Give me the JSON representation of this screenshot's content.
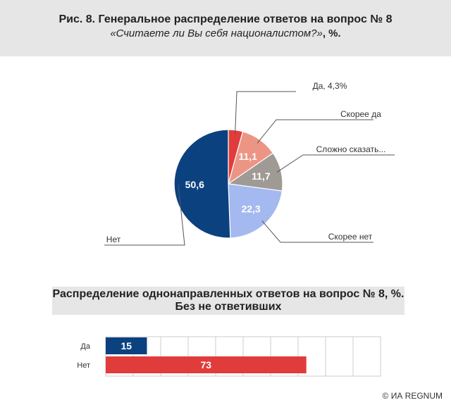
{
  "header": {
    "title": "Рис. 8. Генеральное распределение ответов на вопрос № 8",
    "subtitle_question": "«Считаете ли Вы себя националистом?»",
    "subtitle_suffix": ", %."
  },
  "colors": {
    "da": "#e03c3c",
    "skoree_da": "#ec9585",
    "slozhno": "#9f9a94",
    "skoree_net": "#a3b9ef",
    "net": "#0c4180",
    "bar_net": "#e03c3c",
    "bar_da": "#0c4180",
    "leader": "#555555"
  },
  "chart_data": [
    {
      "type": "pie",
      "slices": [
        {
          "label": "Да, 4,3%",
          "value": 4.3,
          "value_label": "",
          "color": "#e03c3c"
        },
        {
          "label": "Скорее да",
          "value": 11.1,
          "value_label": "11,1",
          "color": "#ec9585"
        },
        {
          "label": "Сложно сказать...",
          "value": 11.7,
          "value_label": "11,7",
          "color": "#9f9a94"
        },
        {
          "label": "Скорее нет",
          "value": 22.3,
          "value_label": "22,3",
          "color": "#a3b9ef"
        },
        {
          "label": "Нет",
          "value": 50.6,
          "value_label": "50,6",
          "color": "#0c4180"
        }
      ]
    },
    {
      "type": "bar",
      "orientation": "horizontal",
      "title": "Распределение однонаправленных ответов на вопрос № 8, %.",
      "subtitle": "Без не ответивших",
      "categories": [
        "Да",
        "Нет"
      ],
      "values": [
        15,
        73
      ],
      "value_labels": [
        "15",
        "73"
      ],
      "colors": [
        "#0c4180",
        "#e03c3c"
      ],
      "xlim": [
        0,
        100
      ],
      "grid": true
    }
  ],
  "copyright": "© ИА REGNUM"
}
